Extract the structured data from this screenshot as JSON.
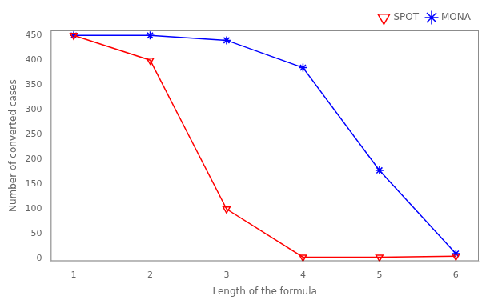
{
  "chart_data": {
    "type": "line",
    "x_label": "Length of the formula",
    "y_label": "Number of converted cases",
    "x": [
      1,
      2,
      3,
      4,
      5,
      6
    ],
    "series": [
      {
        "name": "SPOT",
        "color": "#ff0000",
        "marker": "triangle_down",
        "values": [
          450,
          400,
          100,
          3,
          3,
          5
        ]
      },
      {
        "name": "MONA",
        "color": "#0000ff",
        "marker": "star",
        "values": [
          450,
          450,
          440,
          385,
          178,
          10
        ]
      }
    ],
    "xlim": [
      0.7,
      6.3
    ],
    "ylim": [
      -5,
      460
    ],
    "xticks": [
      1,
      2,
      3,
      4,
      5,
      6
    ],
    "yticks": [
      0,
      50,
      100,
      150,
      200,
      250,
      300,
      350,
      400,
      450
    ],
    "grid": false,
    "legend": "upper right"
  }
}
